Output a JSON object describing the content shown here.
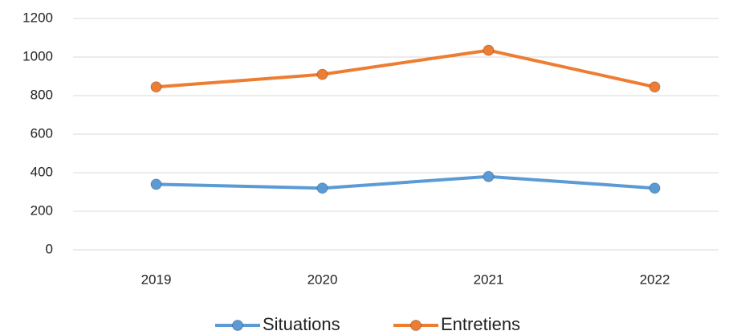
{
  "chart_data": {
    "type": "line",
    "categories": [
      "2019",
      "2020",
      "2021",
      "2022"
    ],
    "series": [
      {
        "name": "Situations",
        "color": "#5b9bd5",
        "values": [
          340,
          320,
          380,
          320
        ]
      },
      {
        "name": "Entretiens",
        "color": "#ed7d31",
        "values": [
          845,
          910,
          1035,
          845
        ]
      }
    ],
    "ylim": [
      0,
      1200
    ],
    "yticks": [
      0,
      200,
      400,
      600,
      800,
      1000,
      1200
    ],
    "grid": true,
    "legend": "bottom"
  }
}
